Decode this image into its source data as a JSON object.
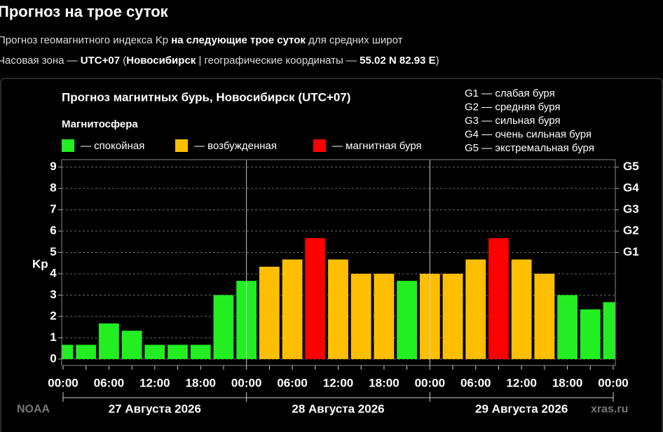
{
  "header": {
    "title": "Прогноз на трое суток",
    "subtitle": [
      {
        "text": "Прогноз геомагнитного индекса Kp ",
        "bold": false
      },
      {
        "text": "на следующие трое суток",
        "bold": true
      },
      {
        "text": " для средних широт",
        "bold": false
      }
    ],
    "timezone": [
      {
        "text": "Часовая зона — ",
        "bold": false
      },
      {
        "text": "UTC+07",
        "bold": true
      },
      {
        "text": " (",
        "bold": false
      },
      {
        "text": "Новосибирск",
        "bold": true
      },
      {
        "text": " | географические координаты — ",
        "bold": false
      },
      {
        "text": "55.02 N 82.93 E",
        "bold": true
      },
      {
        "text": ")",
        "bold": false
      }
    ]
  },
  "chart_data": {
    "type": "bar",
    "title": "Прогноз магнитных бурь, Новосибирск (UTC+07)",
    "legend_title": "Магнитосфера",
    "legend": [
      {
        "name": "— спокойная",
        "color": "#22ee22"
      },
      {
        "name": "— возбужденная",
        "color": "#ffbf00"
      },
      {
        "name": "— магнитная буря",
        "color": "#ff0000"
      }
    ],
    "scale_notes": [
      "G1 — слабая буря",
      "G2 — средняя буря",
      "G3 — сильная буря",
      "G4 — очень сильная буря",
      "G5 — экстремальная буря"
    ],
    "ylabel": "Kp",
    "categories": [
      "00:00",
      null,
      "06:00",
      null,
      "12:00",
      null,
      "18:00",
      null,
      "00:00",
      null,
      "06:00",
      null,
      "12:00",
      null,
      "18:00",
      null,
      "00:00",
      null,
      "06:00",
      null,
      "12:00",
      null,
      "18:00",
      null,
      "00:00"
    ],
    "values": [
      0.67,
      0.67,
      1.67,
      1.33,
      0.67,
      0.67,
      0.67,
      3.0,
      3.67,
      4.33,
      4.67,
      5.67,
      4.67,
      4.0,
      4.0,
      3.67,
      4.0,
      4.0,
      4.67,
      5.67,
      4.67,
      4.0,
      3.0,
      2.33,
      2.67
    ],
    "bar_colors": [
      "#22ee22",
      "#22ee22",
      "#22ee22",
      "#22ee22",
      "#22ee22",
      "#22ee22",
      "#22ee22",
      "#22ee22",
      "#22ee22",
      "#ffbf00",
      "#ffbf00",
      "#ff0000",
      "#ffbf00",
      "#ffbf00",
      "#ffbf00",
      "#22ee22",
      "#ffbf00",
      "#ffbf00",
      "#ffbf00",
      "#ff0000",
      "#ffbf00",
      "#ffbf00",
      "#22ee22",
      "#22ee22",
      "#22ee22"
    ],
    "days": [
      "27 Августа 2026",
      "28 Августа 2026",
      "29 Августа 2026"
    ],
    "ylim": [
      -0.3,
      9.35
    ],
    "yticks": [
      0,
      1,
      2,
      3,
      4,
      5,
      6,
      7,
      8,
      9
    ],
    "y2lim": [
      -0.3,
      9.35
    ],
    "y2ticks": [
      {
        "value": 5,
        "label": "G1"
      },
      {
        "value": 6,
        "label": "G2"
      },
      {
        "value": 7,
        "label": "G3"
      },
      {
        "value": 8,
        "label": "G4"
      },
      {
        "value": 9,
        "label": "G5"
      }
    ],
    "grid": true,
    "sources": [
      "NOAA",
      "xras.ru"
    ]
  }
}
